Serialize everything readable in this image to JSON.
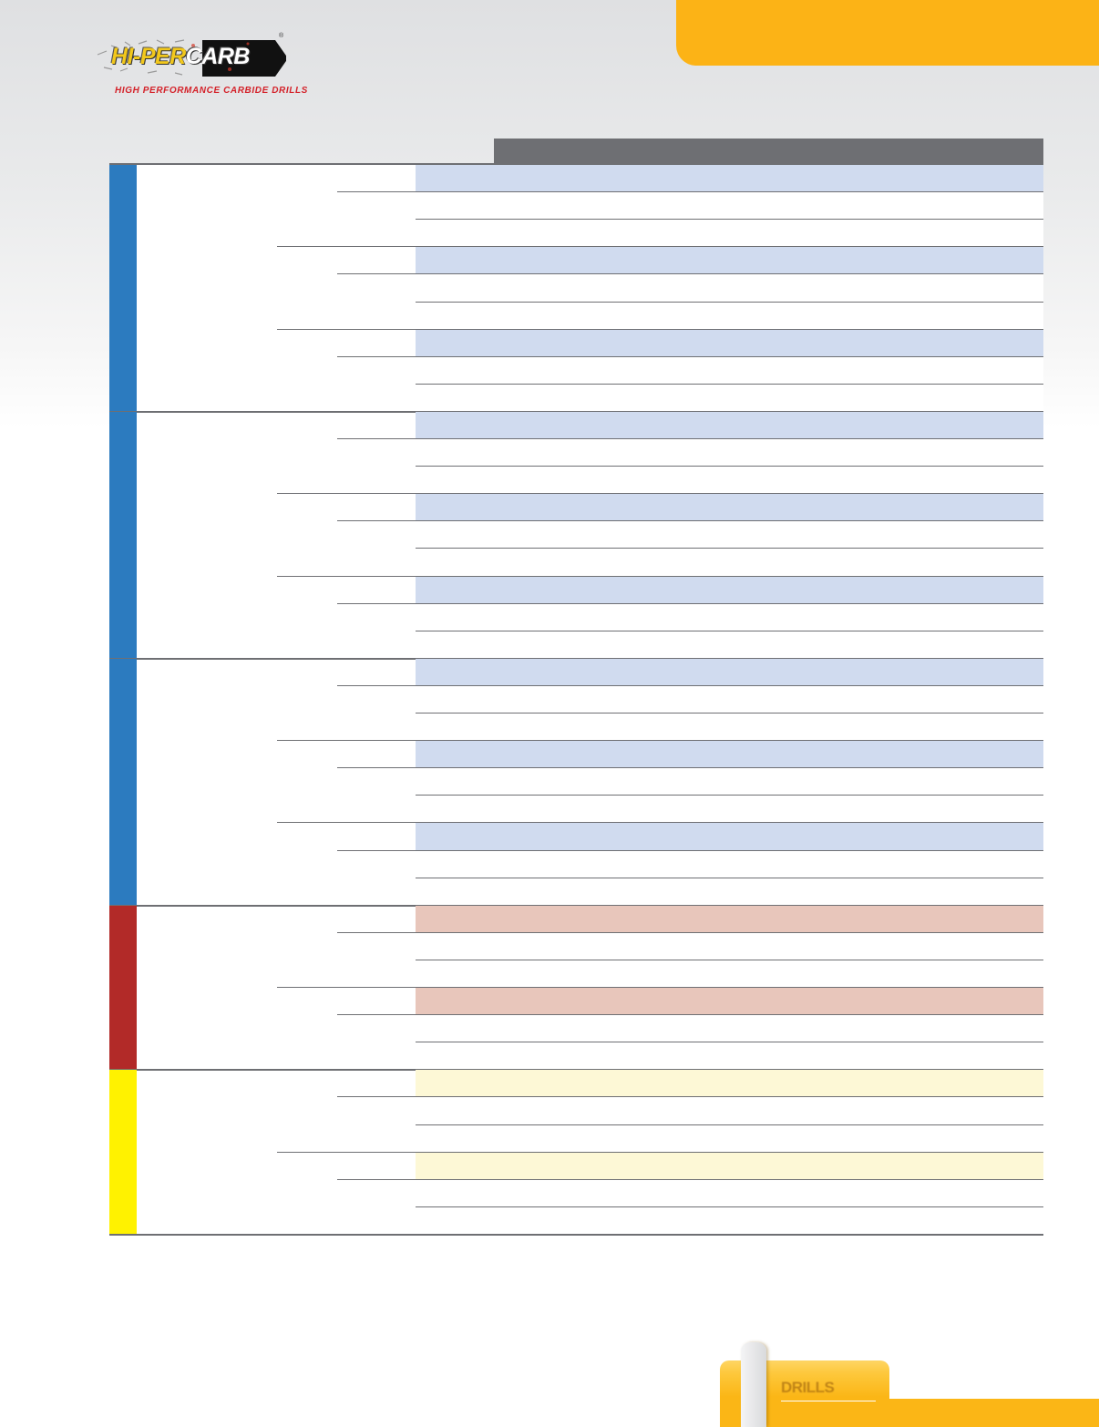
{
  "logo": {
    "brand_part1": "HI-PER",
    "brand_part2": "CARB",
    "registered": "®",
    "tagline": "HIGH PERFORMANCE CARBIDE DRILLS"
  },
  "section_tab": {
    "label": "DRILLS"
  },
  "colors": {
    "accent_orange": "#fcb316",
    "header_gray": "#6e6f73",
    "blue": "#2c7bbf",
    "red": "#b22a28",
    "yellow": "#fff200",
    "blue_highlight": "#d0dbef",
    "red_highlight": "#e8c6bb",
    "yellow_highlight": "#fdf8d6"
  },
  "table": {
    "groups": [
      {
        "color": "blue",
        "subgroups": 3
      },
      {
        "color": "blue",
        "subgroups": 3
      },
      {
        "color": "blue",
        "subgroups": 3
      },
      {
        "color": "red",
        "subgroups": 2
      },
      {
        "color": "yellow",
        "subgroups": 2
      }
    ],
    "rows_per_subgroup": 3
  }
}
